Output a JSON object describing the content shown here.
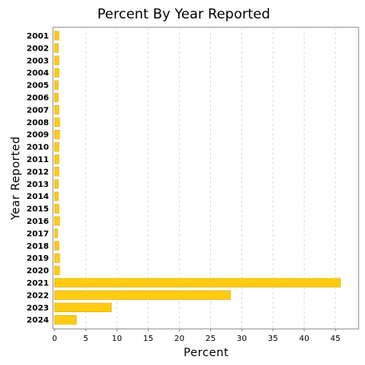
{
  "chart_data": {
    "type": "bar",
    "orientation": "horizontal",
    "title": "Percent By Year Reported",
    "xlabel": "Percent",
    "ylabel": "Year Reported",
    "categories": [
      "2001",
      "2002",
      "2003",
      "2004",
      "2005",
      "2006",
      "2007",
      "2008",
      "2009",
      "2010",
      "2011",
      "2012",
      "2013",
      "2014",
      "2015",
      "2016",
      "2017",
      "2018",
      "2019",
      "2020",
      "2021",
      "2022",
      "2023",
      "2024"
    ],
    "values": [
      0.7,
      0.6,
      0.7,
      0.7,
      0.6,
      0.6,
      0.7,
      0.8,
      0.8,
      0.7,
      0.7,
      0.7,
      0.6,
      0.6,
      0.7,
      0.8,
      0.5,
      0.7,
      0.8,
      0.8,
      45.8,
      28.2,
      9.1,
      3.5
    ],
    "xlim": [
      0,
      47
    ],
    "xticks": [
      0,
      5,
      10,
      15,
      20,
      25,
      30,
      35,
      40,
      45
    ],
    "grid": true,
    "bar_color": "#FFCC11",
    "bar_stroke": "#D9A800"
  }
}
